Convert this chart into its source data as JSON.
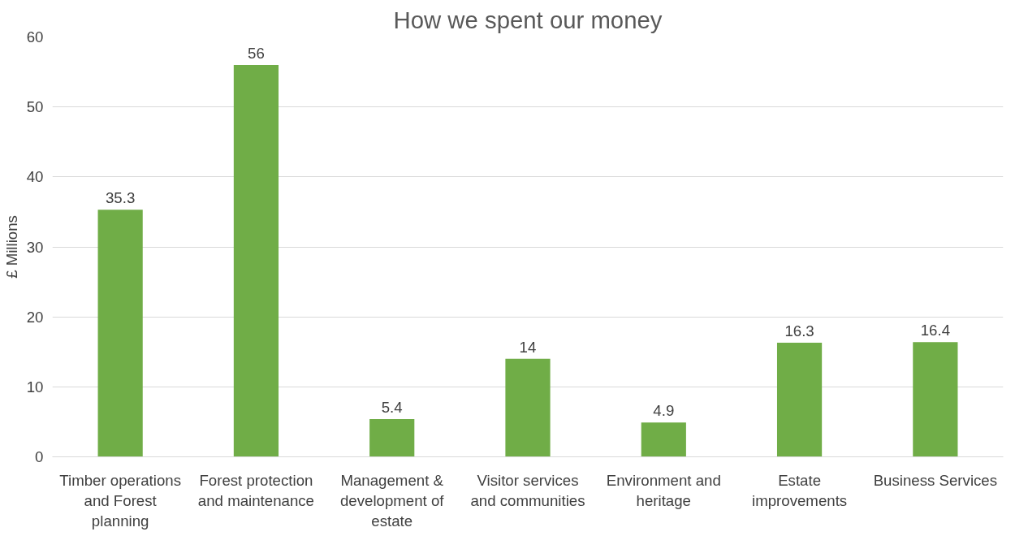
{
  "chart_data": {
    "type": "bar",
    "title": "How we spent our money",
    "ylabel": "£ Millions",
    "categories": [
      "Timber operations and Forest planning",
      "Forest protection and maintenance",
      "Management & development of estate",
      "Visitor services and communities",
      "Environment and heritage",
      "Estate improvements",
      "Business Services"
    ],
    "values": [
      35.3,
      56,
      5.4,
      14,
      4.9,
      16.3,
      16.4
    ],
    "color": "#70ad47",
    "ylim": [
      0,
      60
    ],
    "yticks": [
      0,
      10,
      20,
      30,
      40,
      50,
      60
    ],
    "grid": "y",
    "data_labels": true
  }
}
